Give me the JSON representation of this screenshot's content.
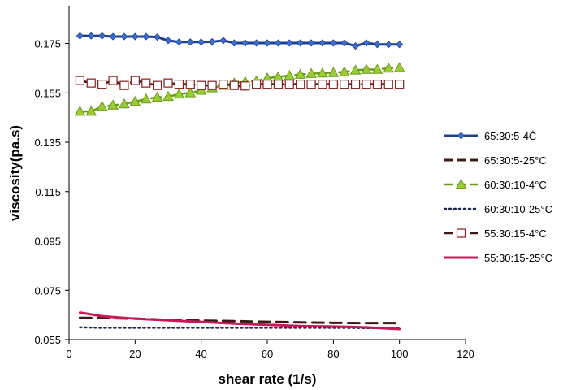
{
  "chart_data": {
    "type": "line",
    "title": "",
    "xlabel": "shear rate (1/s)",
    "ylabel": "viscosity(pa.s)",
    "xlim": [
      0,
      120
    ],
    "ylim": [
      0.055,
      0.19
    ],
    "xticks": [
      0,
      20,
      40,
      60,
      80,
      100,
      120
    ],
    "xtick_labels": [
      "0",
      "20",
      "40",
      "60",
      "80",
      "100",
      "120"
    ],
    "yticks": [
      0.055,
      0.075,
      0.095,
      0.115,
      0.135,
      0.155,
      0.175
    ],
    "ytick_labels": [
      "0.055",
      "0.075",
      "0.095",
      "0.115",
      "0.135",
      "0.155",
      "0.175"
    ],
    "grid": false,
    "legend_position": "right",
    "series": [
      {
        "name": "65:30:5-4Ċ",
        "color": "#1f3f8f",
        "marker_color": "#3a6fcf",
        "line_style": "solid",
        "line_width": 3,
        "marker": "diamond",
        "x": [
          3.3,
          6.7,
          10,
          13.3,
          16.7,
          20,
          23.3,
          26.7,
          30,
          33.3,
          36.7,
          40,
          43.3,
          46.7,
          50,
          53.3,
          56.7,
          60,
          63.3,
          66.7,
          70,
          73.3,
          76.7,
          80,
          83.3,
          86.7,
          90,
          93.3,
          96.7,
          100
        ],
        "values": [
          0.1781,
          0.1781,
          0.1781,
          0.1778,
          0.1778,
          0.1778,
          0.1778,
          0.1776,
          0.1762,
          0.1756,
          0.1756,
          0.1756,
          0.1757,
          0.1762,
          0.1752,
          0.1752,
          0.1752,
          0.1752,
          0.1752,
          0.1752,
          0.1752,
          0.1752,
          0.1752,
          0.1752,
          0.1752,
          0.174,
          0.1752,
          0.1746,
          0.1746,
          0.1746
        ]
      },
      {
        "name": "65:30:5-25°C",
        "color": "#3d1b14",
        "line_style": "dashed",
        "dash": "14,8",
        "line_width": 3,
        "marker": "none",
        "x": [
          3.3,
          10,
          20,
          30,
          40,
          50,
          60,
          70,
          80,
          90,
          100
        ],
        "values": [
          0.0638,
          0.0638,
          0.0635,
          0.063,
          0.0627,
          0.0625,
          0.0622,
          0.062,
          0.0618,
          0.0617,
          0.0617
        ]
      },
      {
        "name": "60:30:10-4°C",
        "color": "#6a9a1e",
        "marker_color": "#9acd32",
        "line_style": "dashed",
        "dash": "12,6",
        "line_width": 2.5,
        "marker": "triangle",
        "x": [
          3.3,
          6.7,
          10,
          13.3,
          16.7,
          20,
          23.3,
          26.7,
          30,
          33.3,
          36.7,
          40,
          43.3,
          46.7,
          50,
          53.3,
          56.7,
          60,
          63.3,
          66.7,
          70,
          73.3,
          76.7,
          80,
          83.3,
          86.7,
          90,
          93.3,
          96.7,
          100
        ],
        "values": [
          0.1475,
          0.1475,
          0.1495,
          0.15,
          0.1505,
          0.1515,
          0.1525,
          0.1532,
          0.1535,
          0.1545,
          0.155,
          0.156,
          0.157,
          0.158,
          0.159,
          0.1595,
          0.1598,
          0.161,
          0.1615,
          0.162,
          0.1625,
          0.1628,
          0.163,
          0.1632,
          0.1635,
          0.1642,
          0.1645,
          0.1645,
          0.165,
          0.1652
        ]
      },
      {
        "name": "60:30:10-25°C",
        "color": "#1a2a4a",
        "line_style": "dotted",
        "dash": "2,4",
        "line_width": 2.5,
        "marker": "none",
        "x": [
          3.3,
          10,
          20,
          30,
          40,
          50,
          60,
          70,
          80,
          90,
          100
        ],
        "values": [
          0.06,
          0.0598,
          0.0598,
          0.0598,
          0.0598,
          0.0598,
          0.0598,
          0.0598,
          0.0598,
          0.0597,
          0.0597
        ]
      },
      {
        "name": "55:30:15-4°C",
        "color": "#3d1b14",
        "marker_color": "#8a1e1e",
        "line_style": "dashed",
        "dash": "14,8",
        "line_width": 2.5,
        "marker": "square",
        "x": [
          3.3,
          6.7,
          10,
          13.3,
          16.7,
          20,
          23.3,
          26.7,
          30,
          33.3,
          36.7,
          40,
          43.3,
          46.7,
          50,
          53.3,
          56.7,
          60,
          63.3,
          66.7,
          70,
          73.3,
          76.7,
          80,
          83.3,
          86.7,
          90,
          93.3,
          96.7,
          100
        ],
        "values": [
          0.16,
          0.159,
          0.1585,
          0.16,
          0.158,
          0.16,
          0.159,
          0.158,
          0.159,
          0.1585,
          0.1585,
          0.158,
          0.158,
          0.1585,
          0.158,
          0.1578,
          0.1585,
          0.1585,
          0.1585,
          0.1585,
          0.1585,
          0.1585,
          0.1585,
          0.1585,
          0.1585,
          0.1585,
          0.1585,
          0.1585,
          0.1585,
          0.1585
        ]
      },
      {
        "name": "55:30:15-25°C",
        "color": "#c8185a",
        "line_style": "solid",
        "line_width": 3,
        "marker": "none",
        "x": [
          3.3,
          10,
          20,
          30,
          40,
          50,
          60,
          70,
          80,
          90,
          100
        ],
        "values": [
          0.066,
          0.0645,
          0.0635,
          0.0628,
          0.0622,
          0.0615,
          0.061,
          0.0605,
          0.0603,
          0.06,
          0.0593
        ]
      }
    ]
  }
}
